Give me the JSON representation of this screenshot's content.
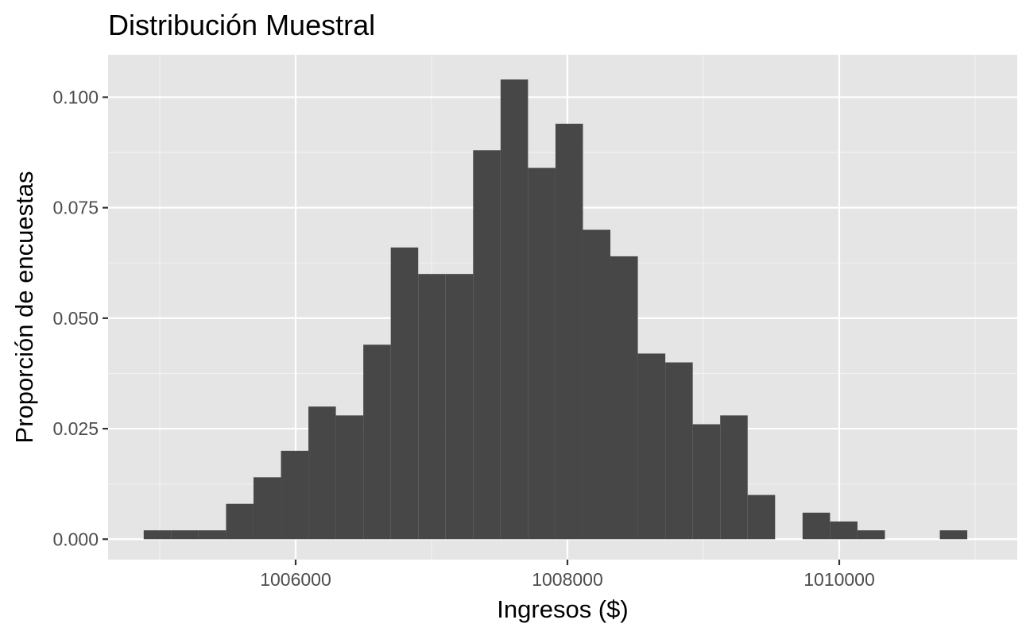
{
  "chart_data": {
    "type": "bar",
    "subtype": "histogram",
    "title": "Distribución Muestral",
    "xlabel": "Ingresos ($)",
    "ylabel": "Proporción de encuestas",
    "xlim": [
      1004620,
      1011310
    ],
    "ylim": [
      -0.00462,
      0.1096
    ],
    "x_ticks": [
      1006000,
      1008000,
      1010000
    ],
    "x_tick_labels": [
      "1006000",
      "1008000",
      "1010000"
    ],
    "y_ticks": [
      0.0,
      0.025,
      0.05,
      0.075,
      0.1
    ],
    "y_tick_labels": [
      "0.000",
      "0.025",
      "0.050",
      "0.075",
      "0.100"
    ],
    "bin_width": 202,
    "bins": [
      {
        "x0": 1004882,
        "x1": 1005084,
        "value": 0.002
      },
      {
        "x0": 1005084,
        "x1": 1005286,
        "value": 0.002
      },
      {
        "x0": 1005286,
        "x1": 1005488,
        "value": 0.002
      },
      {
        "x0": 1005488,
        "x1": 1005690,
        "value": 0.008
      },
      {
        "x0": 1005690,
        "x1": 1005892,
        "value": 0.014
      },
      {
        "x0": 1005892,
        "x1": 1006094,
        "value": 0.02
      },
      {
        "x0": 1006094,
        "x1": 1006296,
        "value": 0.03
      },
      {
        "x0": 1006296,
        "x1": 1006498,
        "value": 0.028
      },
      {
        "x0": 1006498,
        "x1": 1006700,
        "value": 0.044
      },
      {
        "x0": 1006700,
        "x1": 1006902,
        "value": 0.066
      },
      {
        "x0": 1006902,
        "x1": 1007104,
        "value": 0.06
      },
      {
        "x0": 1007104,
        "x1": 1007306,
        "value": 0.06
      },
      {
        "x0": 1007306,
        "x1": 1007508,
        "value": 0.088
      },
      {
        "x0": 1007508,
        "x1": 1007710,
        "value": 0.104
      },
      {
        "x0": 1007710,
        "x1": 1007912,
        "value": 0.084
      },
      {
        "x0": 1007912,
        "x1": 1008114,
        "value": 0.094
      },
      {
        "x0": 1008114,
        "x1": 1008316,
        "value": 0.07
      },
      {
        "x0": 1008316,
        "x1": 1008518,
        "value": 0.064
      },
      {
        "x0": 1008518,
        "x1": 1008720,
        "value": 0.042
      },
      {
        "x0": 1008720,
        "x1": 1008922,
        "value": 0.04
      },
      {
        "x0": 1008922,
        "x1": 1009124,
        "value": 0.026
      },
      {
        "x0": 1009124,
        "x1": 1009326,
        "value": 0.028
      },
      {
        "x0": 1009326,
        "x1": 1009528,
        "value": 0.01
      },
      {
        "x0": 1009528,
        "x1": 1009730,
        "value": 0.0
      },
      {
        "x0": 1009730,
        "x1": 1009932,
        "value": 0.006
      },
      {
        "x0": 1009932,
        "x1": 1010134,
        "value": 0.004
      },
      {
        "x0": 1010134,
        "x1": 1010336,
        "value": 0.002
      },
      {
        "x0": 1010336,
        "x1": 1010538,
        "value": 0.0
      },
      {
        "x0": 1010538,
        "x1": 1010740,
        "value": 0.0
      },
      {
        "x0": 1010740,
        "x1": 1010942,
        "value": 0.002
      }
    ],
    "grid": true,
    "legend": "none",
    "colors": {
      "panel_background": "#e5e5e5",
      "grid_major": "#ffffff",
      "grid_minor": "#f2f2f2",
      "bar_fill": "#474747",
      "tick_text": "#4d4d4d",
      "tick_mark": "#333333"
    }
  }
}
